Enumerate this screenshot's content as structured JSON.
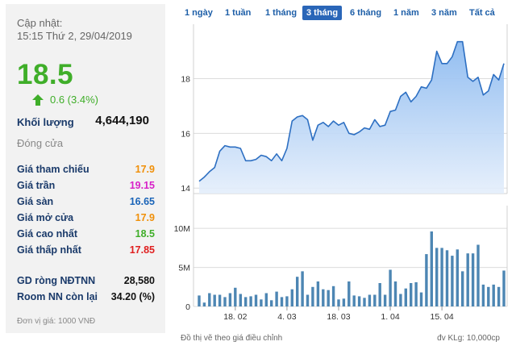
{
  "summary": {
    "updated_label": "Cập nhật:",
    "updated_time": "15:15 Thứ 2, 29/04/2019",
    "price": "18.5",
    "change": "0.6 (3.4%)",
    "volume_label": "Khối lượng",
    "volume_value": "4,644,190",
    "status": "Đóng cửa",
    "price_rows": [
      {
        "label": "Giá tham chiếu",
        "value": "17.9",
        "color": "#f0900a"
      },
      {
        "label": "Giá trần",
        "value": "19.15",
        "color": "#d822c8"
      },
      {
        "label": "Giá sàn",
        "value": "16.65",
        "color": "#1a64b8"
      },
      {
        "label": "Giá mở cửa",
        "value": "17.9",
        "color": "#f0900a"
      },
      {
        "label": "Giá cao nhất",
        "value": "18.5",
        "color": "#3fae29"
      },
      {
        "label": "Giá thấp nhất",
        "value": "17.85",
        "color": "#e02020"
      }
    ],
    "foreign_rows": [
      {
        "label": "GD ròng NĐTNN",
        "value": "28,580"
      },
      {
        "label": "Room NN còn lại",
        "value": "34.20 (%)"
      }
    ],
    "unit_note": "Đơn vị giá: 1000 VNĐ"
  },
  "tabs": [
    {
      "label": "1 ngày",
      "active": false
    },
    {
      "label": "1 tuần",
      "active": false
    },
    {
      "label": "1 tháng",
      "active": false
    },
    {
      "label": "3 tháng",
      "active": true
    },
    {
      "label": "6 tháng",
      "active": false
    },
    {
      "label": "1 năm",
      "active": false
    },
    {
      "label": "3 năm",
      "active": false
    },
    {
      "label": "Tất cả",
      "active": false
    }
  ],
  "footer": {
    "left": "Đồ thị vẽ theo giá điều chỉnh",
    "right": "đv KLg: 10,000cp"
  },
  "chart_data": [
    {
      "type": "area",
      "title": "",
      "ylim": [
        13.8,
        19.9
      ],
      "y_ticks": [
        14,
        16,
        18
      ],
      "x_tick_labels": [
        "18. 02",
        "4. 03",
        "18. 03",
        "1. 04",
        "15. 04"
      ],
      "x_tick_index": [
        7,
        17,
        27,
        37,
        47
      ],
      "series": [
        {
          "values": [
            14.25,
            14.4,
            14.6,
            14.75,
            15.35,
            15.55,
            15.5,
            15.5,
            15.45,
            15.0,
            15.0,
            15.05,
            15.2,
            15.15,
            15.0,
            15.25,
            15.0,
            15.45,
            16.45,
            16.6,
            16.65,
            16.5,
            15.75,
            16.3,
            16.4,
            16.25,
            16.45,
            16.3,
            16.4,
            16.0,
            15.95,
            16.05,
            16.2,
            16.15,
            16.5,
            16.25,
            16.3,
            16.8,
            16.85,
            17.35,
            17.5,
            17.15,
            17.35,
            17.7,
            17.65,
            17.95,
            19.0,
            18.55,
            18.55,
            18.8,
            19.35,
            19.35,
            18.05,
            17.9,
            18.05,
            17.4,
            17.55,
            18.15,
            17.95,
            18.55
          ]
        }
      ],
      "grid": true
    },
    {
      "type": "bar",
      "title": "",
      "ylim": [
        0,
        12.6
      ],
      "y_tick_labels": [
        "0",
        "5M",
        "10M"
      ],
      "y_ticks": [
        0,
        5,
        10
      ],
      "x_tick_labels": [
        "18. 02",
        "4. 03",
        "18. 03",
        "1. 04",
        "15. 04"
      ],
      "series": [
        {
          "values": [
            1.4,
            0.5,
            1.7,
            1.5,
            1.5,
            1.2,
            1.7,
            2.4,
            1.6,
            1.2,
            1.3,
            1.5,
            0.9,
            1.7,
            0.8,
            1.9,
            1.2,
            1.3,
            2.2,
            3.8,
            4.5,
            1.5,
            2.5,
            3.2,
            2.2,
            2.1,
            2.6,
            0.9,
            1.0,
            3.2,
            1.4,
            1.3,
            1.1,
            1.5,
            1.5,
            3.0,
            1.5,
            4.7,
            3.2,
            1.6,
            2.3,
            3.0,
            3.1,
            1.8,
            6.7,
            9.6,
            7.5,
            7.5,
            7.2,
            6.5,
            7.3,
            4.5,
            6.8,
            6.8,
            7.9,
            2.8,
            2.5,
            2.8,
            2.5,
            4.6
          ]
        }
      ],
      "bar_color": "#4d86b3"
    }
  ]
}
